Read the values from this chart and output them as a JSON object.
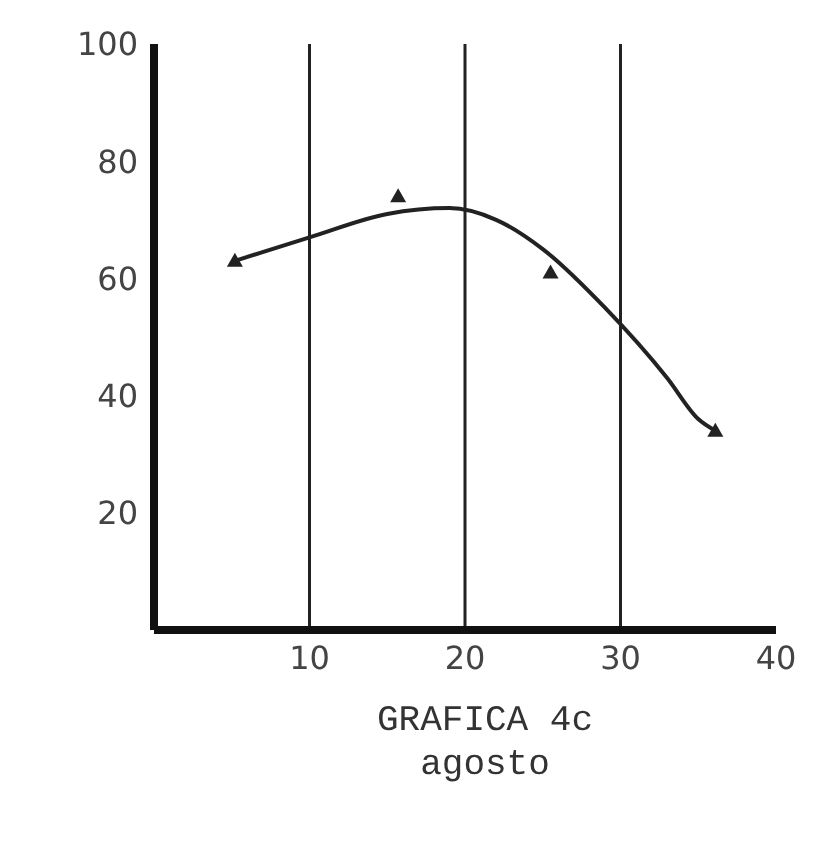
{
  "chart_data": {
    "type": "line",
    "title": "GRAFICA 4c",
    "subtitle": "agosto",
    "series": [
      {
        "type": "scatter",
        "color": "#222222",
        "marker": "triangle",
        "x": [
          5.2,
          15.7,
          25.5,
          36.1
        ],
        "values": [
          63,
          74,
          61,
          34
        ]
      },
      {
        "color": "#222222",
        "marker": "none",
        "x": [
          5.2,
          10,
          15,
          19,
          22,
          25,
          29,
          33,
          35,
          36.1
        ],
        "values": [
          63,
          67,
          71,
          72,
          70,
          65,
          55,
          43,
          36,
          34
        ]
      }
    ],
    "xlim": [
      0,
      40
    ],
    "xticks": [
      10,
      20,
      30,
      40
    ],
    "ylim": [
      0,
      100
    ],
    "yticks": [
      20,
      40,
      60,
      80,
      100
    ],
    "grid": "x"
  }
}
